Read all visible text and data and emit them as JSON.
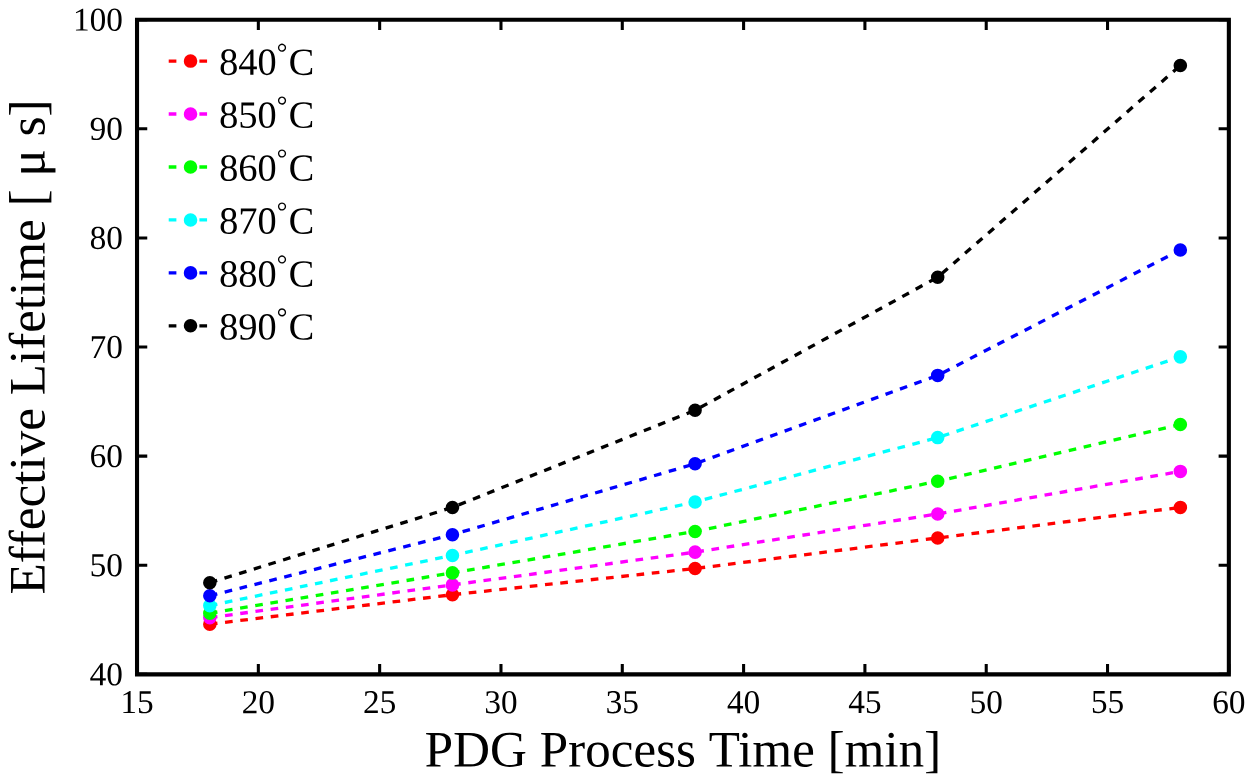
{
  "chart_data": {
    "type": "line",
    "xlabel": "PDG Process Time [min]",
    "ylabel": "Effective Lifetime [ μ s]",
    "x": [
      18,
      28,
      38,
      48,
      58
    ],
    "series": [
      {
        "name": "840$^{°}$C",
        "color": "#ff0000",
        "values": [
          44.6,
          47.3,
          49.7,
          52.5,
          55.3
        ]
      },
      {
        "name": "850$^{°}$C",
        "color": "#ff00ff",
        "values": [
          45.2,
          48.2,
          51.2,
          54.7,
          58.6
        ]
      },
      {
        "name": "860$^{°}$C",
        "color": "#00ff00",
        "values": [
          45.6,
          49.3,
          53.1,
          57.7,
          62.9
        ]
      },
      {
        "name": "870$^{°}$C",
        "color": "#00ffff",
        "values": [
          46.3,
          50.9,
          55.8,
          61.7,
          69.1
        ]
      },
      {
        "name": "880$^{°}$C",
        "color": "#0000ff",
        "values": [
          47.2,
          52.8,
          59.3,
          67.4,
          78.9
        ]
      },
      {
        "name": "890$^{°}$C",
        "color": "#000000",
        "values": [
          48.4,
          55.3,
          64.2,
          76.4,
          95.8
        ]
      }
    ],
    "xlim": [
      15,
      60
    ],
    "xticks": [
      15,
      20,
      25,
      30,
      35,
      40,
      45,
      50,
      55,
      60
    ],
    "ylim": [
      40,
      100
    ],
    "yticks": [
      40,
      50,
      60,
      70,
      80,
      90,
      100
    ],
    "legend": "top left",
    "marker": "circle",
    "line_style": "dashed",
    "grid": false
  }
}
